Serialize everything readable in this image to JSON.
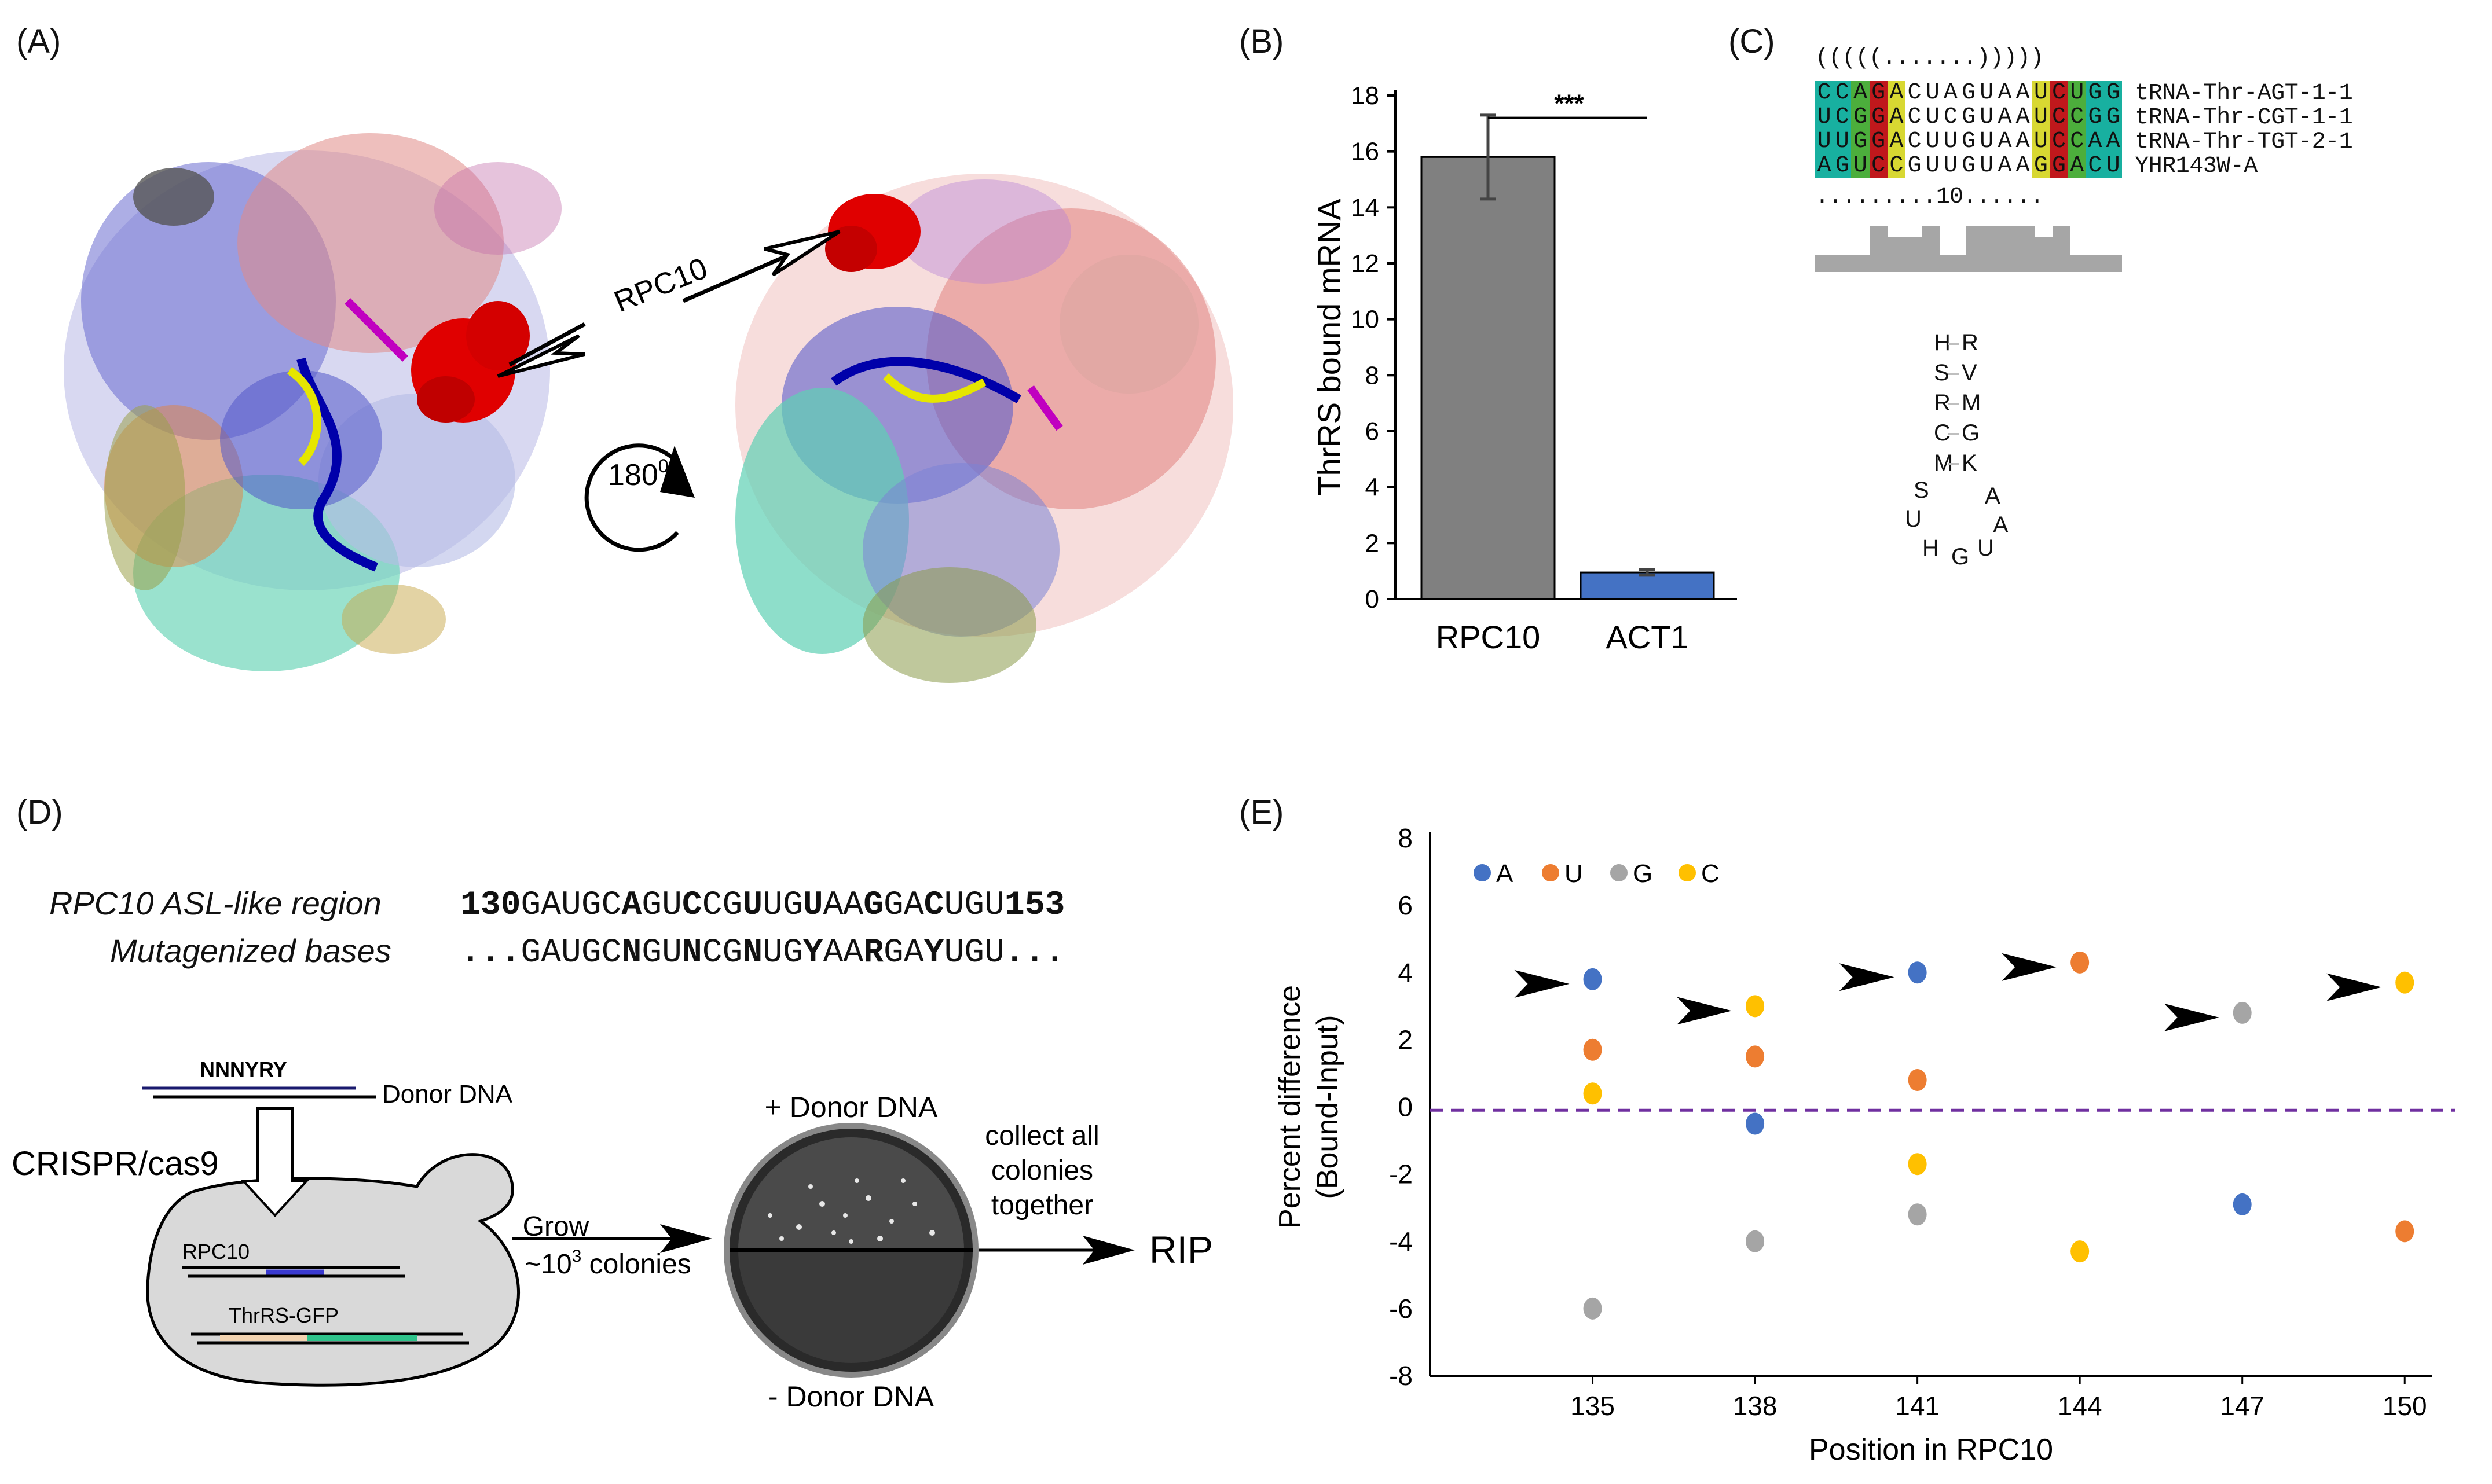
{
  "panels": {
    "a": {
      "label": "(A)",
      "callout": "RPC10",
      "rotation_base": "180",
      "rotation_sup": "0"
    },
    "b": {
      "label": "(B)",
      "significance": "***"
    },
    "c": {
      "label": "(C)",
      "structure_notation": "(((((.......)))))",
      "sequences": [
        {
          "seq": "CCAGACUAGUAAUCUGG",
          "name": "tRNA-Thr-AGT-1-1"
        },
        {
          "seq": "UCGGACUCGUAAUCCGG",
          "name": "tRNA-Thr-CGT-1-1"
        },
        {
          "seq": "UUGGACUUGUAAUCCAA",
          "name": "tRNA-Thr-TGT-2-1"
        },
        {
          "seq": "AGUCCGUUGUAAGGACU",
          "name": "YHR143W-A"
        }
      ],
      "ruler": ".........10......",
      "hairpin": {
        "stem_pairs": [
          [
            "H",
            "R"
          ],
          [
            "S",
            "V"
          ],
          [
            "R",
            "M"
          ],
          [
            "C",
            "G"
          ],
          [
            "M",
            "K"
          ]
        ],
        "loop_left": [
          "S",
          "U",
          "H"
        ],
        "loop_bottom": "G",
        "loop_right": [
          "A",
          "A",
          "U"
        ]
      }
    },
    "d": {
      "label": "(D)",
      "region_title": "RPC10 ASL-like region",
      "region_start": "130",
      "region_end": "153",
      "region_seq": "GAUGCAGUCCGUUGUAAGGACUGU",
      "mut_title": "Mutagenized bases",
      "mut_prefix": "...",
      "mut_seq": "GAUGCNGUNCGNUGYAARGAYUGU",
      "mut_suffix": "...",
      "donor_seq": "NNNYRY",
      "donor_label": "Donor DNA",
      "crispr_label": "CRISPR/cas9",
      "gene_label": "RPC10",
      "gfp_label": "ThrRS-GFP",
      "grow_label": "Grow",
      "colonies_prefix": "~10",
      "colonies_sup": "3",
      "colonies_suffix": " colonies",
      "plus_donor": "+ Donor DNA",
      "minus_donor": "- Donor DNA",
      "collect_line1": "collect all",
      "collect_line2": "colonies",
      "collect_line3": "together",
      "rip_label": "RIP"
    },
    "e": {
      "label": "(E)"
    }
  },
  "colors": {
    "A": "#4472c4",
    "U": "#ed7d31",
    "G": "#a5a5a5",
    "C": "#ffc000",
    "bar_rpc10": "#808080",
    "bar_act1": "#4472c4",
    "dashed": "#7030a0"
  },
  "chart_data": [
    {
      "type": "bar",
      "title": "",
      "ylabel": "ThrRS bound mRNA",
      "xlabel": "",
      "categories": [
        "RPC10",
        "ACT1"
      ],
      "values": [
        15.8,
        0.95
      ],
      "errors": [
        1.5,
        0.1
      ],
      "ylim": [
        0,
        18
      ],
      "yticks": [
        "0",
        "2",
        "4",
        "6",
        "8",
        "10",
        "12",
        "14",
        "16",
        "18"
      ]
    },
    {
      "type": "scatter",
      "title": "",
      "xlabel": "Position in RPC10",
      "ylabel_line1": "Percent difference",
      "ylabel_line2": "(Bound-Input)",
      "xticks": [
        "135",
        "138",
        "141",
        "144",
        "147",
        "150"
      ],
      "yticks": [
        "-8",
        "-6",
        "-4",
        "-2",
        "0",
        "2",
        "4",
        "6",
        "8"
      ],
      "xlim": [
        132,
        150.5
      ],
      "ylim": [
        -8,
        8
      ],
      "baseline": -0.1,
      "legend": [
        "A",
        "U",
        "G",
        "C"
      ],
      "series": [
        {
          "name": "A",
          "points": [
            [
              135,
              3.8
            ],
            [
              138,
              -0.5
            ],
            [
              141,
              4.0
            ],
            [
              147,
              -2.9
            ]
          ]
        },
        {
          "name": "U",
          "points": [
            [
              135,
              1.7
            ],
            [
              138,
              1.5
            ],
            [
              141,
              0.8
            ],
            [
              144,
              4.3
            ],
            [
              150,
              -3.7
            ]
          ]
        },
        {
          "name": "G",
          "points": [
            [
              135,
              -6.0
            ],
            [
              138,
              -4.0
            ],
            [
              141,
              -3.2
            ],
            [
              147,
              2.8
            ]
          ]
        },
        {
          "name": "C",
          "points": [
            [
              135,
              0.4
            ],
            [
              138,
              3.0
            ],
            [
              141,
              -1.7
            ],
            [
              144,
              -4.3
            ],
            [
              150,
              3.7
            ]
          ]
        }
      ],
      "arrows_at": [
        135,
        138,
        141,
        144,
        147,
        150
      ]
    }
  ]
}
